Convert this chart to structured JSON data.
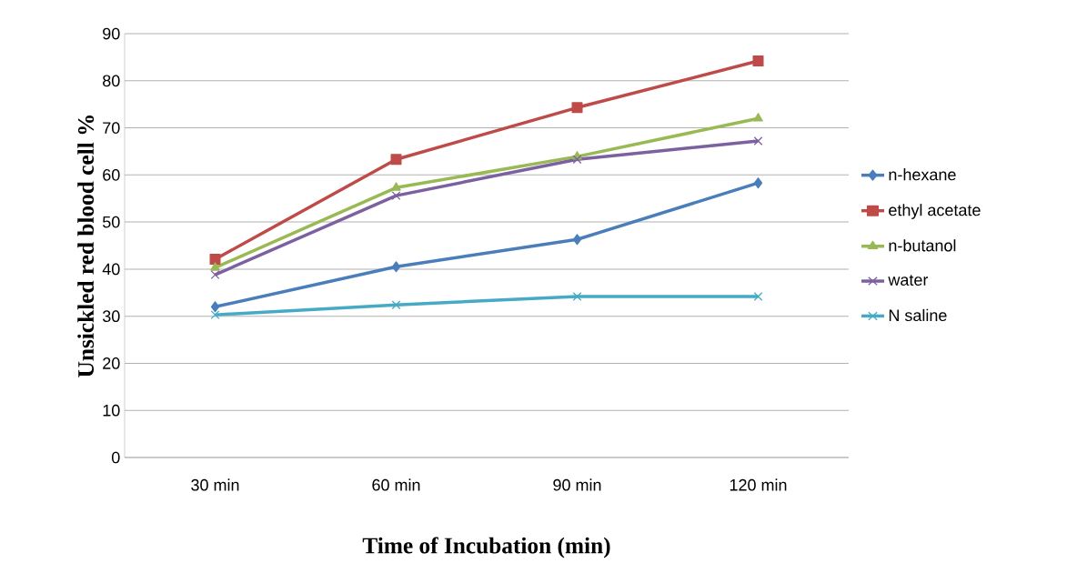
{
  "chart_data": {
    "type": "line",
    "xlabel": "Time of Incubation (min)",
    "ylabel": "Unsickled red blood cell %",
    "categories": [
      "30 min",
      "60 min",
      "90 min",
      "120 min"
    ],
    "series": [
      {
        "name": "n-hexane",
        "color": "#4a7ebb",
        "marker": "diamond",
        "values": [
          32.0,
          40.5,
          46.3,
          58.3
        ]
      },
      {
        "name": "ethyl acetate",
        "color": "#be4b48",
        "marker": "square",
        "values": [
          42.1,
          63.3,
          74.3,
          84.2
        ]
      },
      {
        "name": "n-butanol",
        "color": "#98b954",
        "marker": "triangle",
        "values": [
          40.3,
          57.3,
          63.9,
          72.0
        ]
      },
      {
        "name": "water",
        "color": "#7d60a0",
        "marker": "cross",
        "values": [
          38.8,
          55.6,
          63.3,
          67.2
        ]
      },
      {
        "name": "N saline",
        "color": "#46aac5",
        "marker": "cross",
        "values": [
          30.3,
          32.4,
          34.2,
          34.2
        ]
      }
    ],
    "ylim": [
      0,
      90
    ],
    "yticks": [
      0,
      10,
      20,
      30,
      40,
      50,
      60,
      70,
      80,
      90
    ],
    "grid": "y",
    "legend": "right"
  }
}
